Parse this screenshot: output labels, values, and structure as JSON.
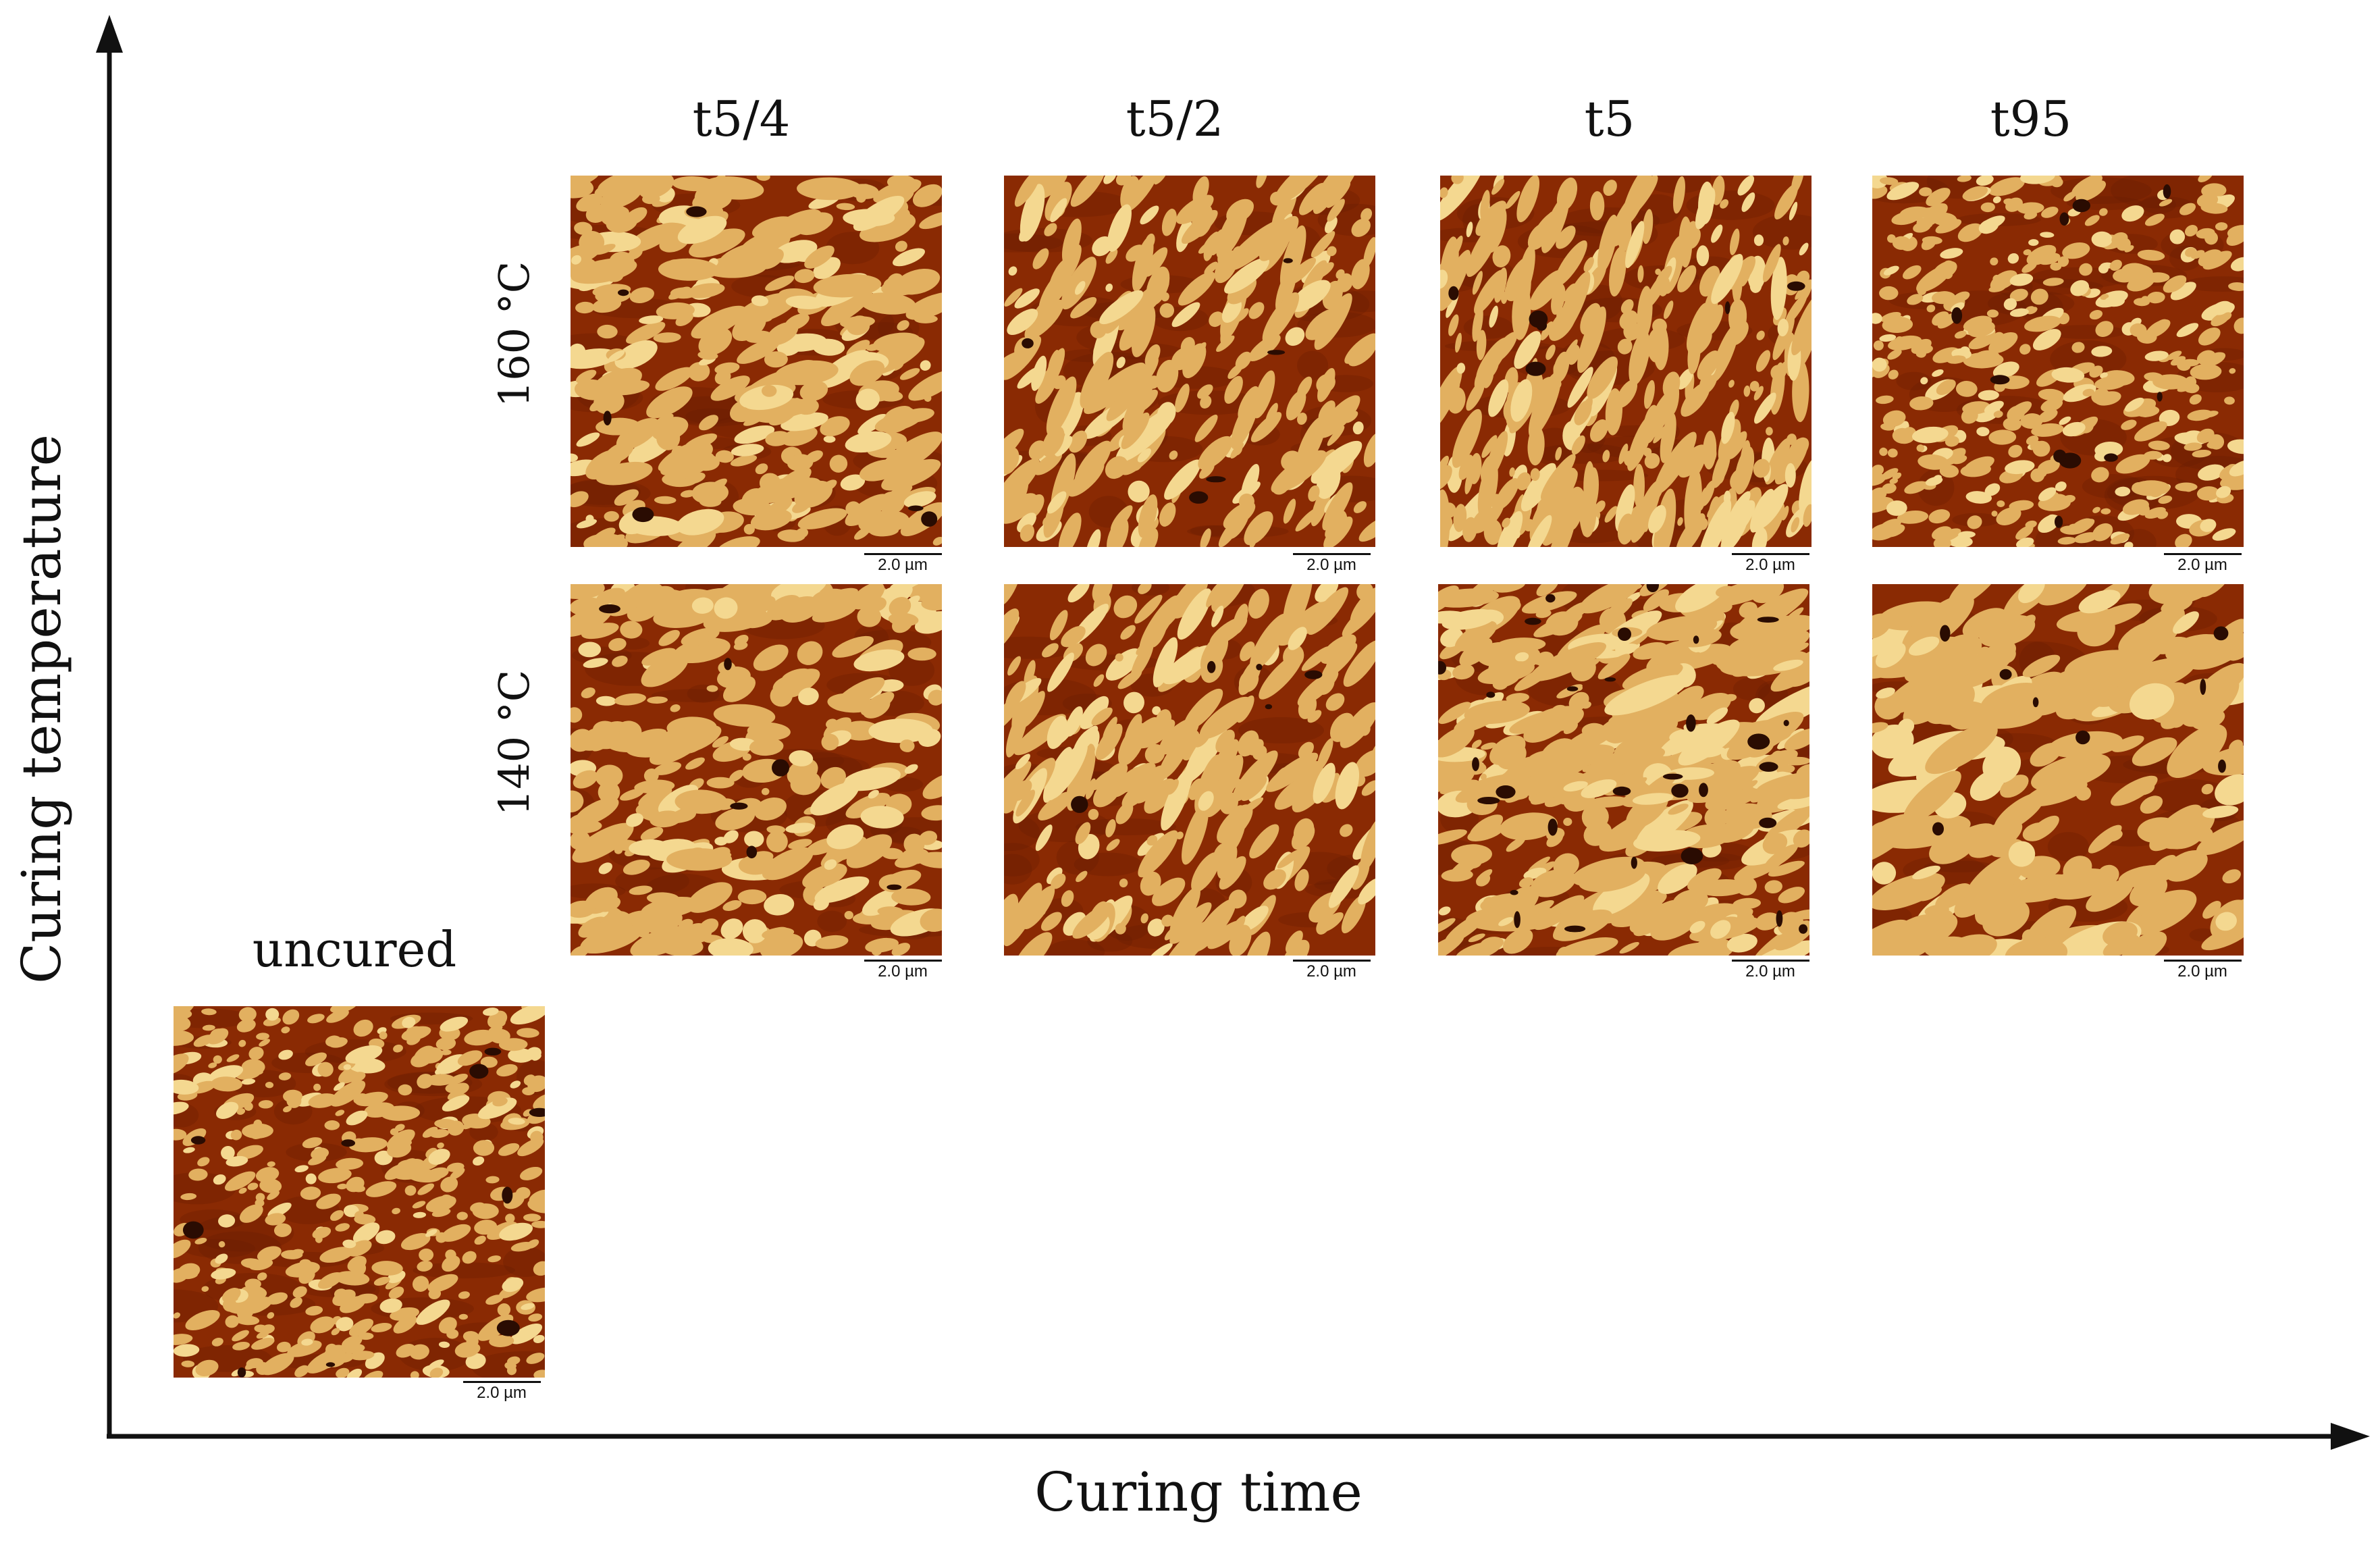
{
  "axes": {
    "x_title": "Curing time",
    "y_title": "Curing temperature"
  },
  "columns": [
    {
      "label": "t5/4"
    },
    {
      "label": "t5/2"
    },
    {
      "label": "t5"
    },
    {
      "label": "t95"
    }
  ],
  "rows": [
    {
      "label": "160 °C"
    },
    {
      "label": "140 °C"
    }
  ],
  "uncured": {
    "label": "uncured"
  },
  "scale_bar": "2.0 µm",
  "colors": {
    "matrix": "#8a2a03",
    "matrix_dark": "#6a1e02",
    "domain": "#e2b060",
    "domain_light": "#f4d890",
    "void": "#2a0c02",
    "axis": "#111111"
  }
}
